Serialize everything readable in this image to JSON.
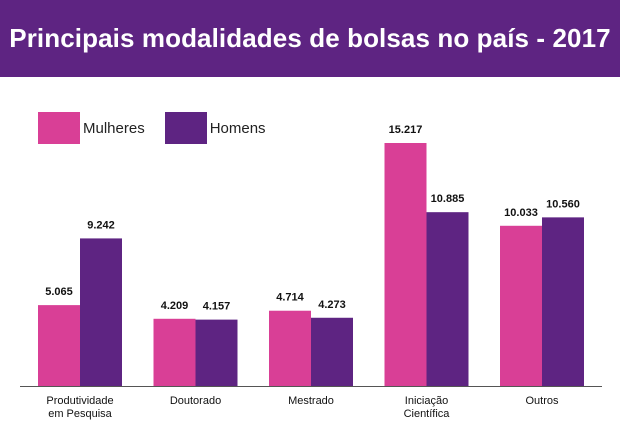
{
  "title": "Principais modalidades de bolsas no país - 2017",
  "legend": [
    {
      "label": "Mulheres",
      "color": "#d93f96"
    },
    {
      "label": "Homens",
      "color": "#5e2482"
    }
  ],
  "chart_data": {
    "type": "bar",
    "title": "Principais modalidades de bolsas no país - 2017",
    "categories": [
      [
        "Produtividade",
        "em Pesquisa"
      ],
      [
        "Doutorado"
      ],
      [
        "Mestrado"
      ],
      [
        "Iniciação",
        "Científica"
      ],
      [
        "Outros"
      ]
    ],
    "series": [
      {
        "name": "Mulheres",
        "color": "#d93f96",
        "values": [
          5065,
          4209,
          4714,
          15217,
          10033
        ],
        "labels": [
          "5.065",
          "4.209",
          "4.714",
          "15.217",
          "10.033"
        ]
      },
      {
        "name": "Homens",
        "color": "#5e2482",
        "values": [
          9242,
          4157,
          4273,
          10885,
          10560
        ],
        "labels": [
          "9.242",
          "4.157",
          "4.273",
          "10.885",
          "10.560"
        ]
      }
    ],
    "ylim": [
      0,
      16000
    ],
    "grid": false,
    "legend_position": "top-left",
    "xlabel": "",
    "ylabel": ""
  }
}
